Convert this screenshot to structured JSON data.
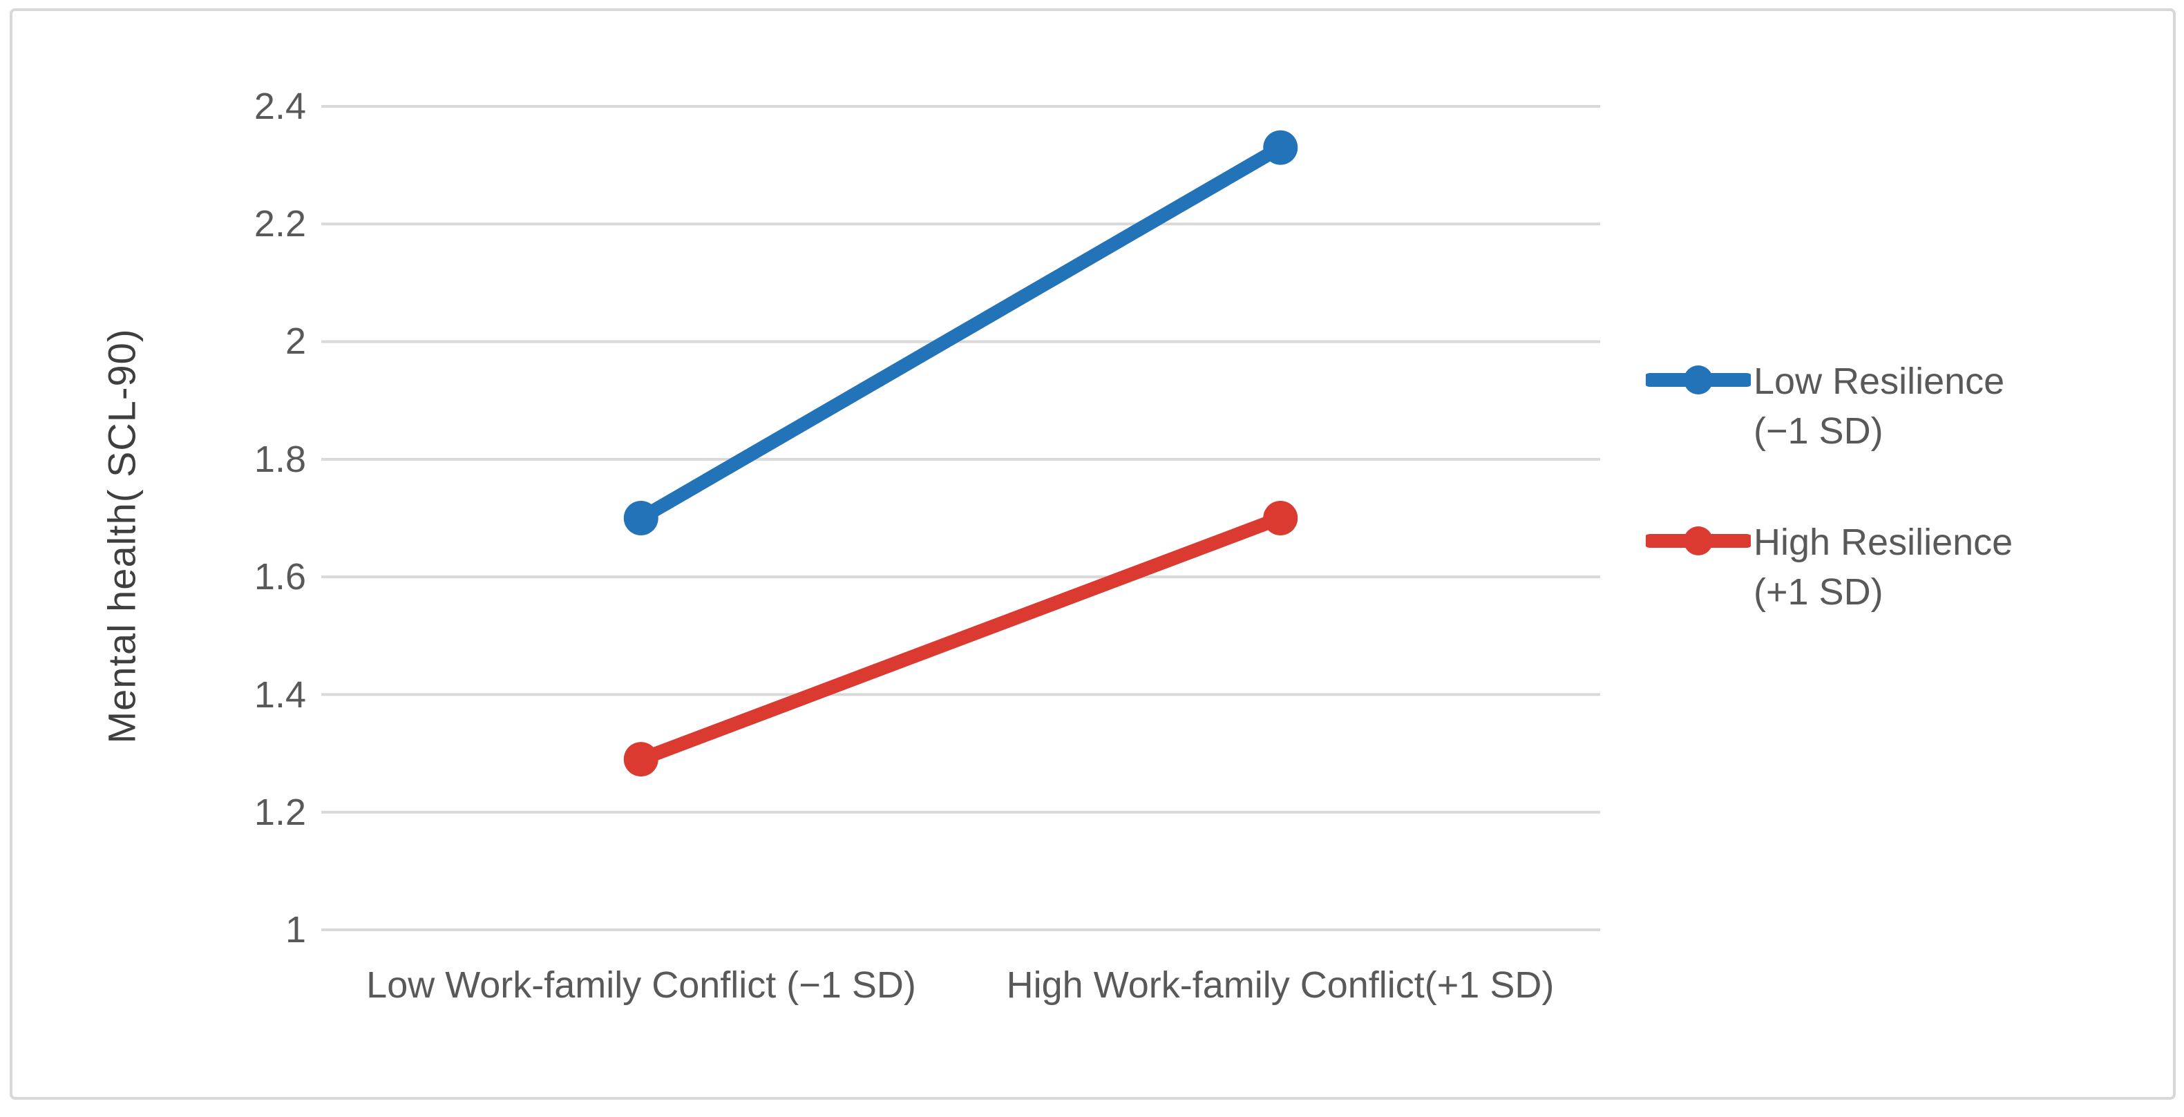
{
  "chart_data": {
    "type": "line",
    "title": "",
    "xlabel": "",
    "ylabel": "Mental health( SCL-90)",
    "categories": [
      "Low Work-family Conflict (−1 SD)",
      "High Work-family Conflict(+1 SD)"
    ],
    "series": [
      {
        "name": "Low Resilience (−1 SD)",
        "legend_line1": "Low Resilience",
        "legend_line2": "(−1 SD)",
        "values": [
          1.7,
          2.33
        ],
        "color": "#2273B8"
      },
      {
        "name": "High Resilience (+1 SD)",
        "legend_line1": "High Resilience",
        "legend_line2": "(+1 SD)",
        "values": [
          1.29,
          1.7
        ],
        "color": "#DB3A31"
      }
    ],
    "ylim": [
      1,
      2.4
    ],
    "ytick_step": 0.2,
    "ytick_labels": [
      "2.4",
      "2.2",
      "2",
      "1.8",
      "1.6",
      "1.4",
      "1.2",
      "1"
    ],
    "grid": true,
    "marker": "circle",
    "legend_position": "right",
    "gridline_color": "#D9D9D9",
    "text_color": "#595959",
    "axis_title_color": "#3F3F3F",
    "background_color": "#FFFFFF",
    "border_color": "#D8D8D8"
  }
}
